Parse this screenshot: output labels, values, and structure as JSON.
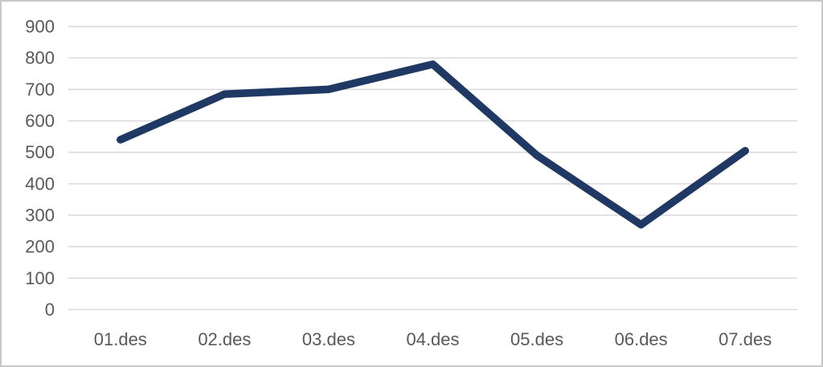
{
  "chart_data": {
    "type": "line",
    "title": "",
    "xlabel": "",
    "ylabel": "",
    "categories": [
      "01.des",
      "02.des",
      "03.des",
      "04.des",
      "05.des",
      "06.des",
      "07.des"
    ],
    "series": [
      {
        "name": "series-1",
        "values": [
          540,
          685,
          700,
          780,
          490,
          270,
          505
        ]
      }
    ],
    "ylim": [
      0,
      900
    ],
    "ytick_step": 100,
    "ytick_labels": [
      "0",
      "100",
      "200",
      "300",
      "400",
      "500",
      "600",
      "700",
      "800",
      "900"
    ],
    "grid": true,
    "legend": false,
    "colors": {
      "line": "#1f3864",
      "gridline": "#d9d9d9",
      "tick_label": "#595959",
      "background": "#ffffff",
      "frame_border": "#c8c8c8"
    }
  }
}
